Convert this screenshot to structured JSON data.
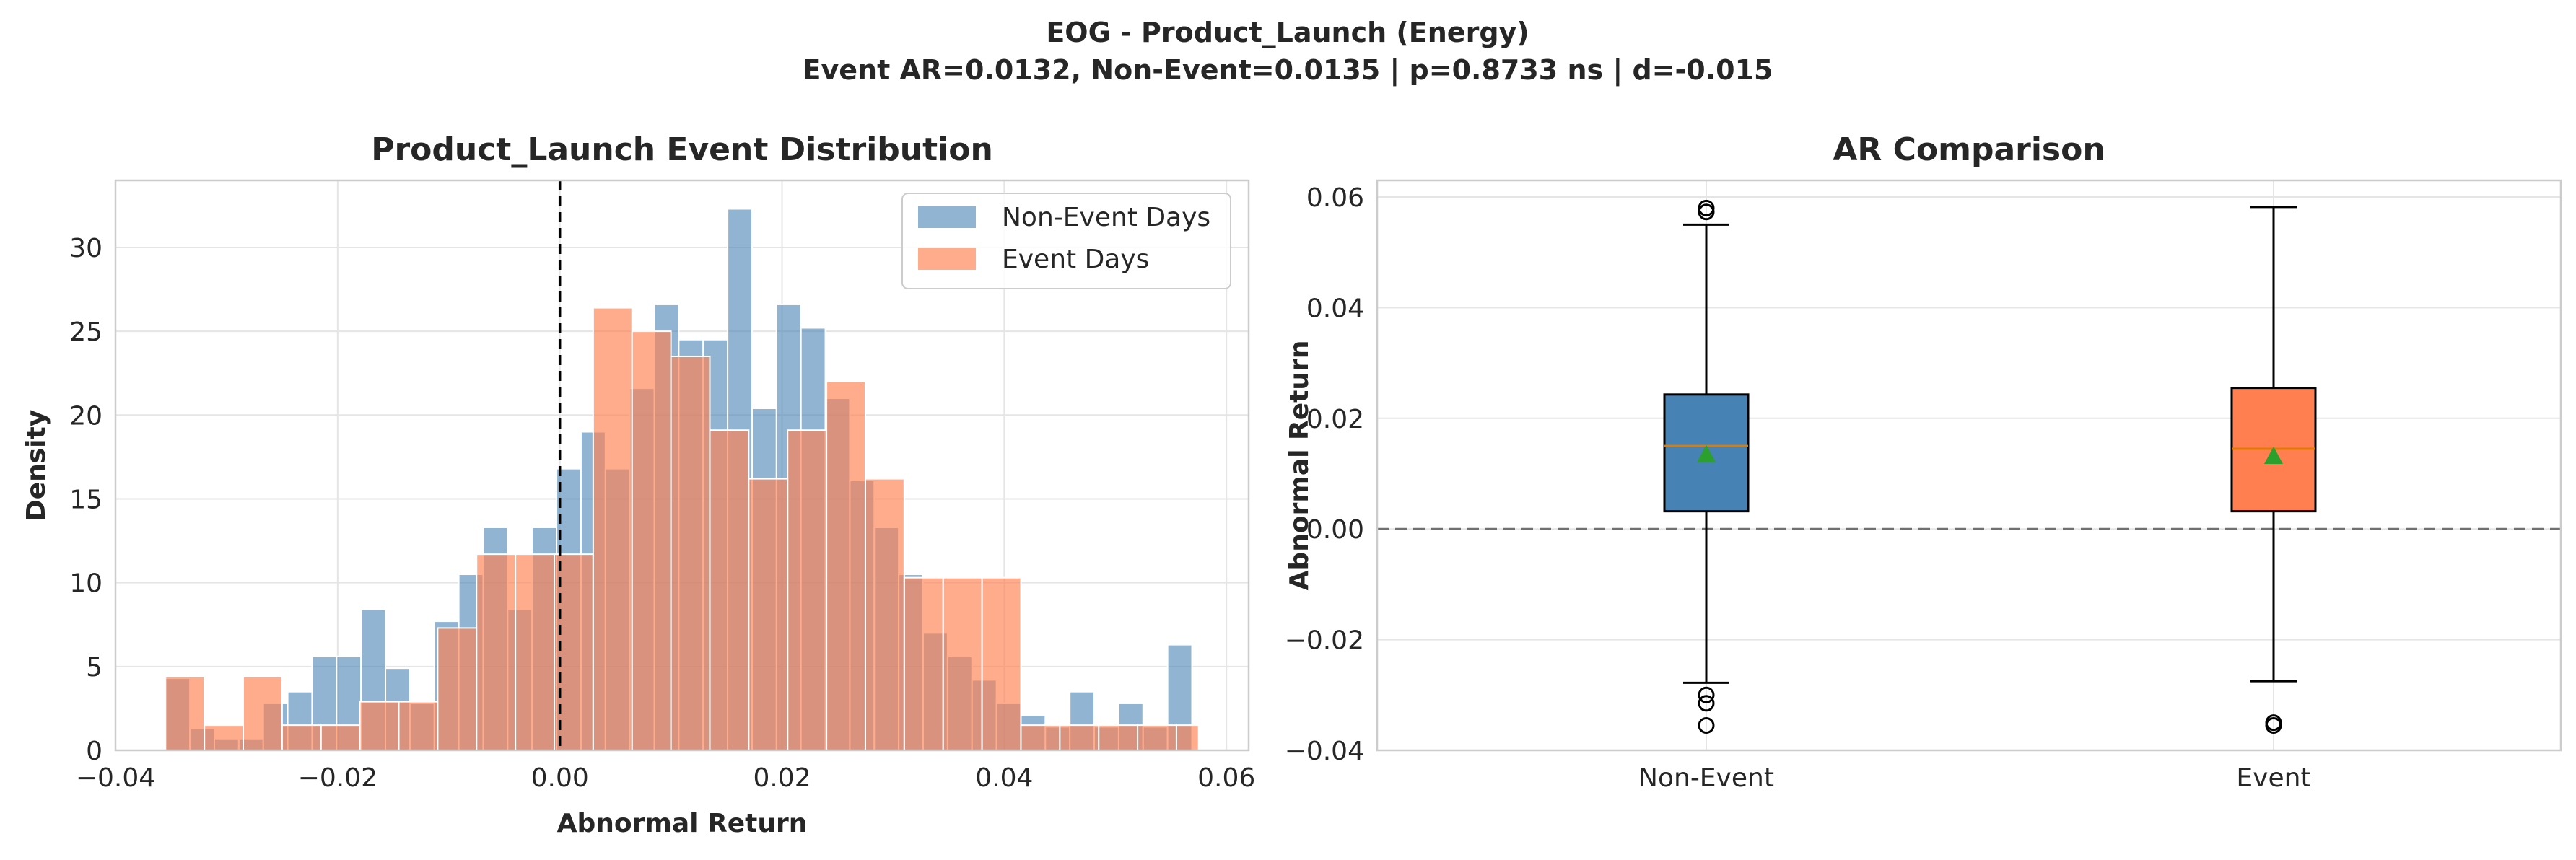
{
  "suptitle": {
    "line1": "EOG - Product_Launch (Energy)",
    "line2": "Event AR=0.0132, Non-Event=0.0135 | p=0.8733 ns | d=-0.015"
  },
  "colors": {
    "non_event": "#4682b4",
    "event": "#ff7f50",
    "median": "#e07b00",
    "mean_marker": "#2ca02c",
    "grid": "#e5e5e5",
    "frame": "#cccccc"
  },
  "chart_data": [
    {
      "type": "histogram",
      "title": "Product_Launch Event Distribution",
      "xlabel": "Abnormal Return",
      "ylabel": "Density",
      "xlim": [
        -0.04,
        0.062
      ],
      "ylim": [
        0,
        34
      ],
      "xticks": [
        -0.04,
        -0.02,
        0.0,
        0.02,
        0.04,
        0.06
      ],
      "xtick_labels": [
        "−0.04",
        "−0.02",
        "0.00",
        "0.02",
        "0.04",
        "0.06"
      ],
      "yticks": [
        0,
        5,
        10,
        15,
        20,
        25,
        30
      ],
      "yticks_labels": [
        "0",
        "5",
        "10",
        "15",
        "20",
        "25",
        "30"
      ],
      "vline": 0.0,
      "legend_position": "top-right",
      "grid": true,
      "series": [
        {
          "name": "Non-Event Days",
          "color_key": "non_event",
          "bins": [
            [
              -0.0355,
              -0.0333,
              4.3
            ],
            [
              -0.0333,
              -0.0311,
              1.3
            ],
            [
              -0.0311,
              -0.0289,
              0.7
            ],
            [
              -0.0289,
              -0.0267,
              0.7
            ],
            [
              -0.0267,
              -0.0245,
              2.8
            ],
            [
              -0.0245,
              -0.0223,
              3.5
            ],
            [
              -0.0223,
              -0.0201,
              5.6
            ],
            [
              -0.0201,
              -0.0179,
              5.6
            ],
            [
              -0.0179,
              -0.0157,
              8.4
            ],
            [
              -0.0157,
              -0.0135,
              4.9
            ],
            [
              -0.0135,
              -0.0113,
              2.8
            ],
            [
              -0.0113,
              -0.0091,
              7.7
            ],
            [
              -0.0091,
              -0.0069,
              10.5
            ],
            [
              -0.0069,
              -0.0047,
              13.3
            ],
            [
              -0.0047,
              -0.0025,
              8.4
            ],
            [
              -0.0025,
              -0.0003,
              13.3
            ],
            [
              -0.0003,
              0.0019,
              16.8
            ],
            [
              0.0019,
              0.0041,
              19.0
            ],
            [
              0.0041,
              0.0063,
              16.8
            ],
            [
              0.0063,
              0.0085,
              21.6
            ],
            [
              0.0085,
              0.0107,
              26.6
            ],
            [
              0.0107,
              0.0129,
              24.5
            ],
            [
              0.0129,
              0.0151,
              24.5
            ],
            [
              0.0151,
              0.0173,
              32.3
            ],
            [
              0.0173,
              0.0195,
              20.4
            ],
            [
              0.0195,
              0.0217,
              26.6
            ],
            [
              0.0217,
              0.0239,
              25.2
            ],
            [
              0.0239,
              0.0261,
              21.0
            ],
            [
              0.0261,
              0.0283,
              16.1
            ],
            [
              0.0283,
              0.0305,
              13.3
            ],
            [
              0.0305,
              0.0327,
              10.5
            ],
            [
              0.0327,
              0.0349,
              7.0
            ],
            [
              0.0349,
              0.0371,
              5.6
            ],
            [
              0.0371,
              0.0393,
              4.2
            ],
            [
              0.0393,
              0.0415,
              2.8
            ],
            [
              0.0415,
              0.0437,
              2.1
            ],
            [
              0.0437,
              0.0459,
              1.4
            ],
            [
              0.0459,
              0.0481,
              3.5
            ],
            [
              0.0481,
              0.0503,
              1.4
            ],
            [
              0.0503,
              0.0525,
              2.8
            ],
            [
              0.0525,
              0.0547,
              1.4
            ],
            [
              0.0547,
              0.0569,
              6.3
            ]
          ]
        },
        {
          "name": "Event Days",
          "color_key": "event",
          "bins": [
            [
              -0.0355,
              -0.032,
              4.4
            ],
            [
              -0.032,
              -0.0285,
              1.5
            ],
            [
              -0.0285,
              -0.025,
              4.4
            ],
            [
              -0.025,
              -0.0215,
              1.5
            ],
            [
              -0.0215,
              -0.018,
              1.5
            ],
            [
              -0.018,
              -0.0145,
              2.9
            ],
            [
              -0.0145,
              -0.011,
              2.9
            ],
            [
              -0.011,
              -0.0075,
              7.3
            ],
            [
              -0.0075,
              -0.004,
              11.7
            ],
            [
              -0.004,
              -0.0005,
              11.7
            ],
            [
              -0.0005,
              0.003,
              11.7
            ],
            [
              0.003,
              0.0065,
              26.4
            ],
            [
              0.0065,
              0.01,
              25.0
            ],
            [
              0.01,
              0.0135,
              23.5
            ],
            [
              0.0135,
              0.017,
              19.1
            ],
            [
              0.017,
              0.0205,
              16.2
            ],
            [
              0.0205,
              0.024,
              19.1
            ],
            [
              0.024,
              0.0275,
              22.0
            ],
            [
              0.0275,
              0.031,
              16.2
            ],
            [
              0.031,
              0.0345,
              10.3
            ],
            [
              0.0345,
              0.038,
              10.3
            ],
            [
              0.038,
              0.0415,
              10.3
            ],
            [
              0.0415,
              0.045,
              1.5
            ],
            [
              0.045,
              0.0485,
              1.5
            ],
            [
              0.0485,
              0.052,
              1.5
            ],
            [
              0.052,
              0.0555,
              1.5
            ],
            [
              0.0555,
              0.0575,
              1.5
            ]
          ]
        }
      ]
    },
    {
      "type": "box",
      "title": "AR Comparison",
      "xlabel": "",
      "ylabel": "Abnormal Return",
      "ylim": [
        -0.04,
        0.063
      ],
      "yticks": [
        -0.04,
        -0.02,
        0.0,
        0.02,
        0.04,
        0.06
      ],
      "ytick_labels": [
        "−0.04",
        "−0.02",
        "0.00",
        "0.02",
        "0.04",
        "0.06"
      ],
      "hline": 0.0,
      "grid": true,
      "categories": [
        "Non-Event",
        "Event"
      ],
      "boxes": [
        {
          "label": "Non-Event",
          "color_key": "non_event",
          "whisker_low": -0.0278,
          "q1": 0.0032,
          "median": 0.015,
          "q3": 0.0243,
          "whisker_high": 0.055,
          "mean": 0.0135,
          "outliers": [
            0.058,
            0.0573,
            -0.03,
            -0.0315,
            -0.0355
          ]
        },
        {
          "label": "Event",
          "color_key": "event",
          "whisker_low": -0.0275,
          "q1": 0.0032,
          "median": 0.0145,
          "q3": 0.0255,
          "whisker_high": 0.0582,
          "mean": 0.0132,
          "outliers": [
            -0.035,
            -0.0355
          ]
        }
      ]
    }
  ]
}
